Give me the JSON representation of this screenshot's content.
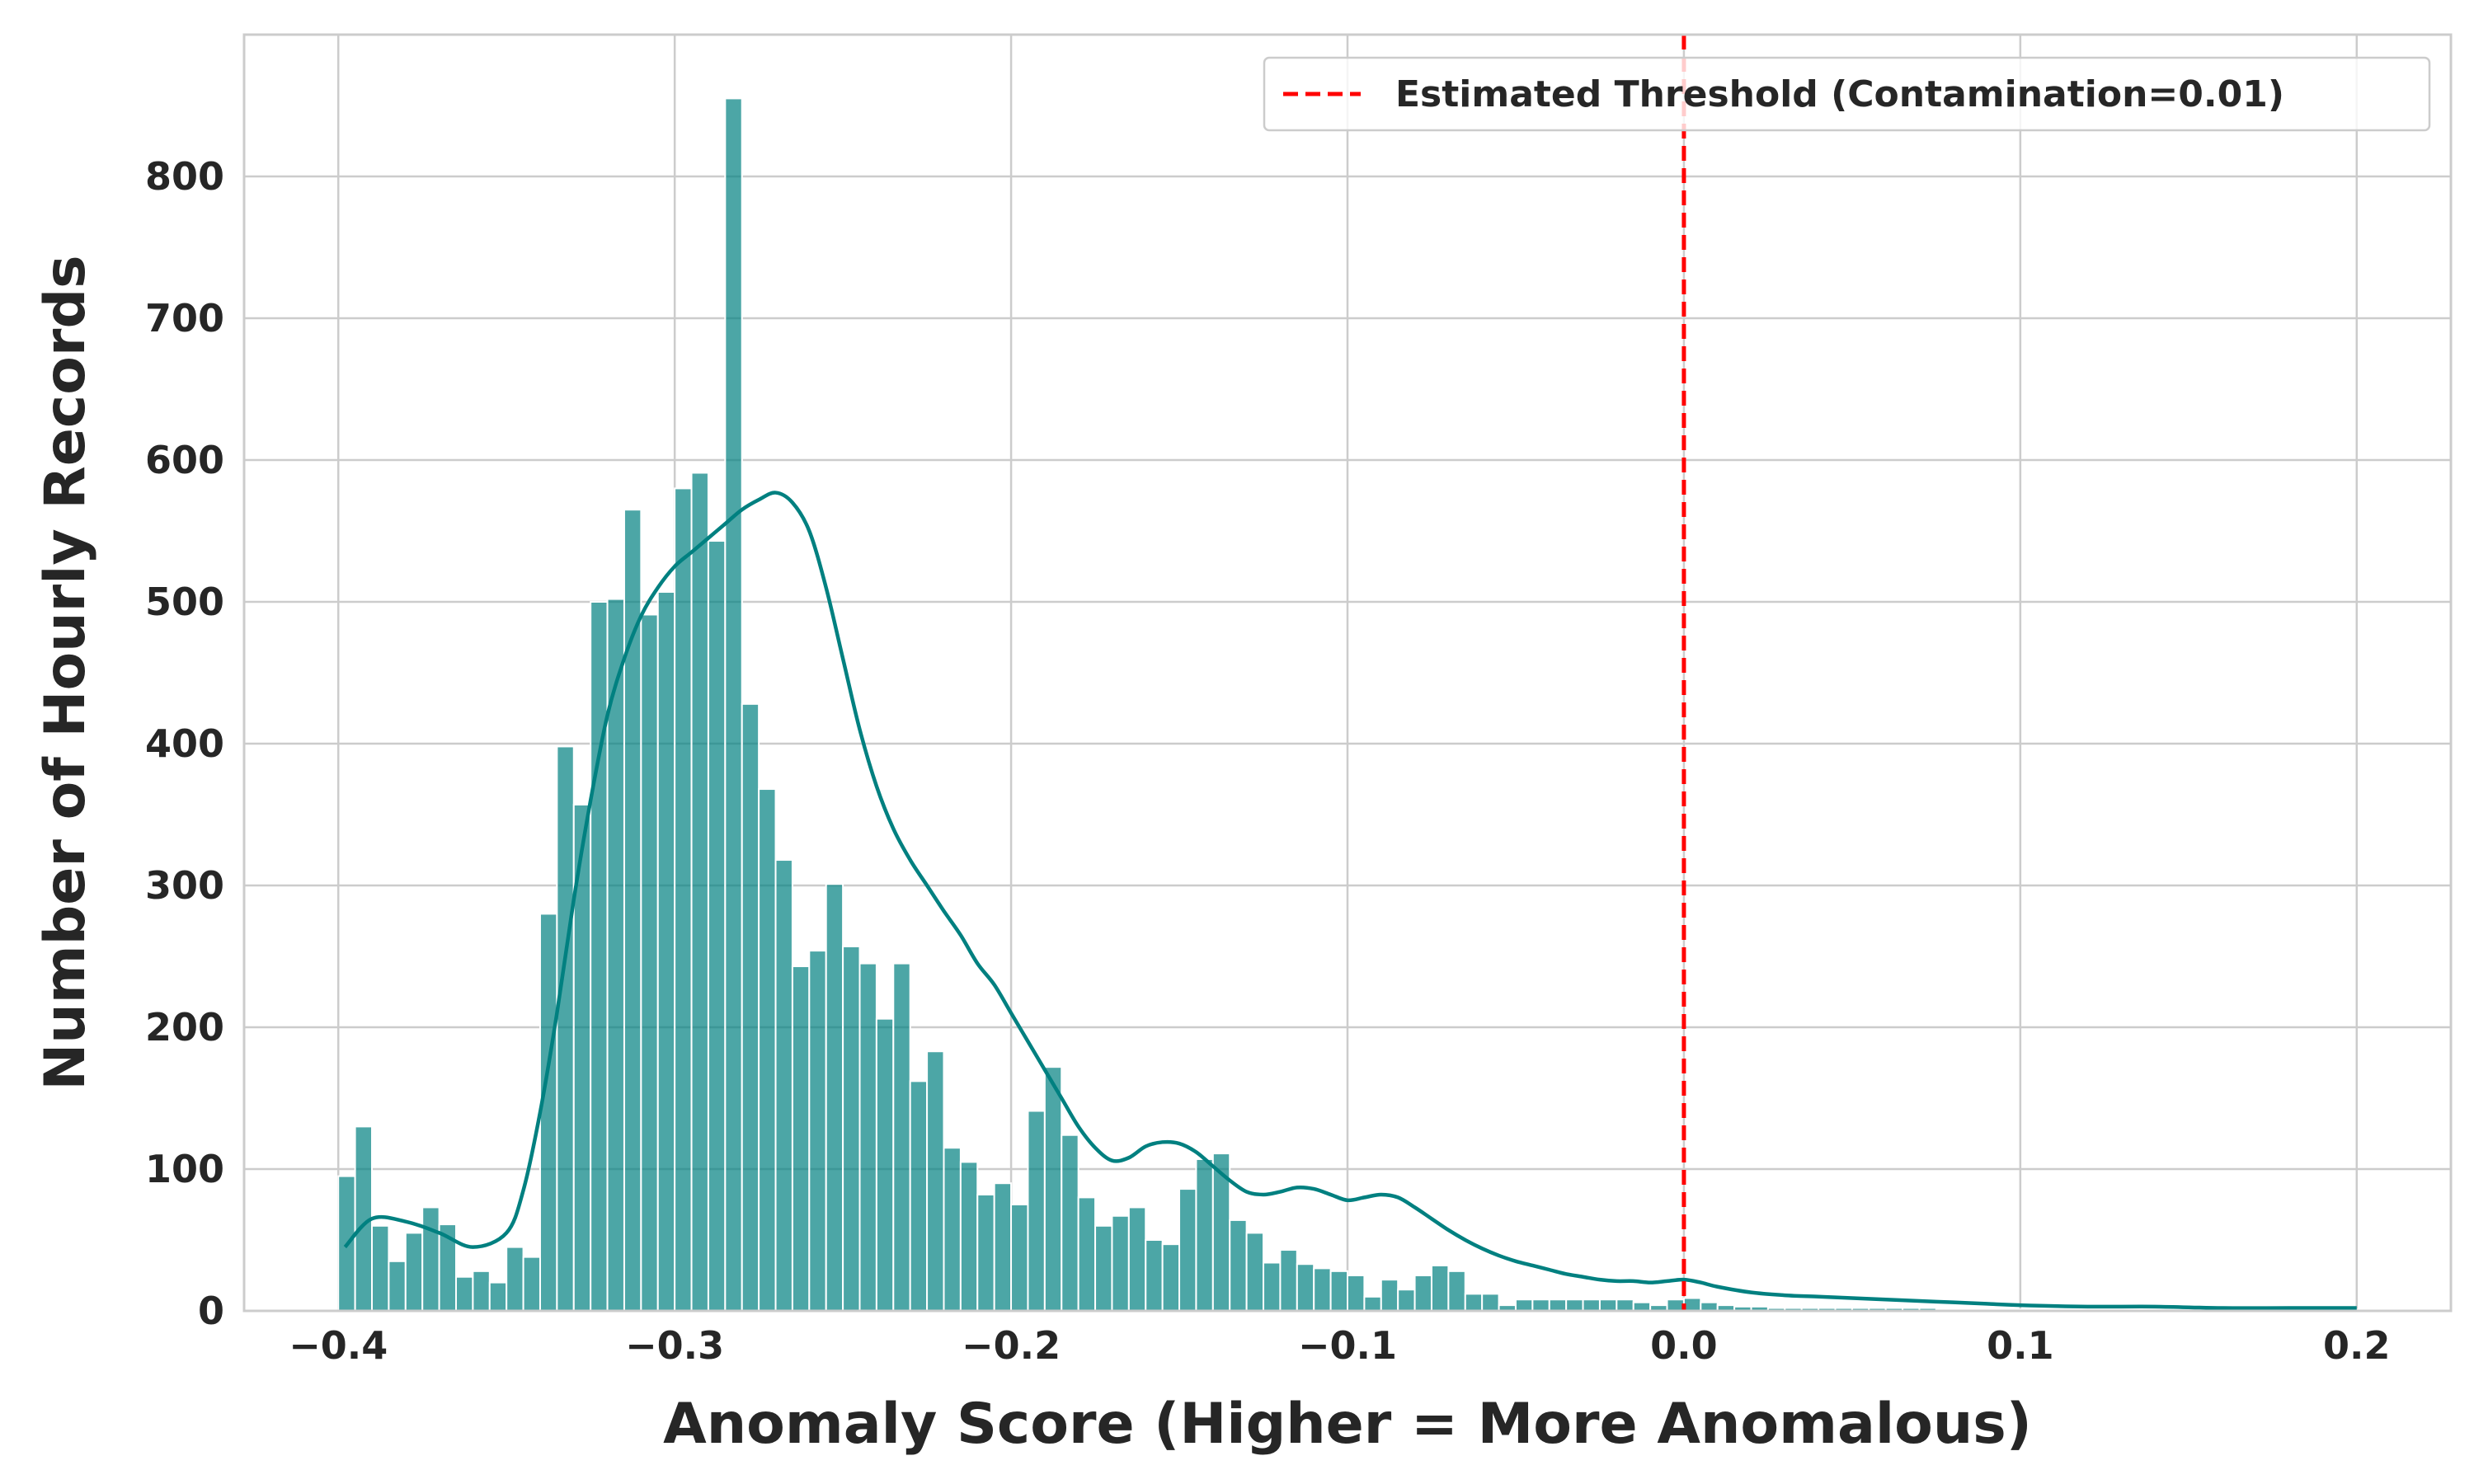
{
  "chart_data": {
    "type": "bar",
    "subtype": "histogram-with-kde",
    "title": "",
    "xlabel": "Anomaly Score (Higher = More Anomalous)",
    "ylabel": "Number of Hourly Records",
    "xlim": [
      -0.428,
      0.228
    ],
    "ylim": [
      0,
      900
    ],
    "xticks": [
      -0.4,
      -0.3,
      -0.2,
      -0.1,
      0.0,
      0.1,
      0.2
    ],
    "xtick_labels": [
      "−0.4",
      "−0.3",
      "−0.2",
      "−0.1",
      "0.0",
      "0.1",
      "0.2"
    ],
    "yticks": [
      0,
      100,
      200,
      300,
      400,
      500,
      600,
      700,
      800
    ],
    "ytick_labels": [
      "0",
      "100",
      "200",
      "300",
      "400",
      "500",
      "600",
      "700",
      "800"
    ],
    "grid": true,
    "legend_position": "top-right",
    "colors": {
      "bars": "#008080",
      "kde": "#008080",
      "threshold": "#ff0000",
      "grid": "#cccccc",
      "axes": "#cccccc"
    },
    "histogram": {
      "bin_start": -0.4,
      "bin_width": 0.005,
      "counts": [
        95,
        130,
        60,
        35,
        55,
        73,
        61,
        24,
        28,
        20,
        45,
        38,
        280,
        398,
        357,
        500,
        502,
        565,
        491,
        507,
        580,
        591,
        543,
        855,
        428,
        368,
        318,
        243,
        254,
        301,
        257,
        245,
        206,
        245,
        162,
        183,
        115,
        105,
        82,
        90,
        75,
        141,
        172,
        124,
        80,
        60,
        67,
        73,
        50,
        47,
        86,
        107,
        111,
        64,
        55,
        34,
        43,
        33,
        30,
        28,
        25,
        10,
        22,
        15,
        25,
        32,
        28,
        12,
        12,
        4,
        8,
        8,
        8,
        8,
        8,
        8,
        8,
        6,
        4,
        8,
        9,
        6,
        4,
        3,
        3,
        2,
        2,
        2,
        2,
        2,
        2,
        2,
        2,
        2,
        2,
        1,
        1,
        1,
        1,
        1,
        1,
        1,
        1,
        1,
        1,
        1,
        1,
        1,
        1,
        1,
        1,
        1,
        1,
        1,
        1,
        1,
        1,
        1,
        1,
        1
      ]
    },
    "kde": {
      "x": [
        -0.398,
        -0.39,
        -0.38,
        -0.37,
        -0.36,
        -0.35,
        -0.345,
        -0.34,
        -0.335,
        -0.33,
        -0.325,
        -0.32,
        -0.315,
        -0.31,
        -0.305,
        -0.3,
        -0.295,
        -0.29,
        -0.285,
        -0.28,
        -0.275,
        -0.27,
        -0.265,
        -0.26,
        -0.255,
        -0.25,
        -0.245,
        -0.24,
        -0.235,
        -0.23,
        -0.225,
        -0.22,
        -0.215,
        -0.21,
        -0.205,
        -0.2,
        -0.195,
        -0.19,
        -0.185,
        -0.18,
        -0.175,
        -0.17,
        -0.165,
        -0.16,
        -0.155,
        -0.15,
        -0.145,
        -0.14,
        -0.135,
        -0.13,
        -0.125,
        -0.12,
        -0.115,
        -0.11,
        -0.105,
        -0.1,
        -0.095,
        -0.09,
        -0.085,
        -0.08,
        -0.075,
        -0.07,
        -0.065,
        -0.06,
        -0.055,
        -0.05,
        -0.045,
        -0.04,
        -0.035,
        -0.03,
        -0.025,
        -0.02,
        -0.015,
        -0.01,
        -0.005,
        0.0,
        0.005,
        0.01,
        0.02,
        0.03,
        0.04,
        0.05,
        0.06,
        0.07,
        0.08,
        0.09,
        0.1,
        0.12,
        0.14,
        0.16,
        0.18,
        0.2
      ],
      "y": [
        45,
        65,
        63,
        55,
        45,
        55,
        85,
        140,
        210,
        290,
        360,
        420,
        460,
        490,
        510,
        525,
        535,
        545,
        555,
        565,
        572,
        577,
        570,
        550,
        510,
        460,
        410,
        370,
        340,
        318,
        300,
        282,
        265,
        245,
        230,
        210,
        190,
        170,
        150,
        130,
        115,
        106,
        108,
        116,
        119,
        118,
        112,
        102,
        92,
        84,
        82,
        84,
        87,
        86,
        82,
        78,
        80,
        82,
        80,
        73,
        65,
        57,
        50,
        44,
        39,
        35,
        32,
        29,
        26,
        24,
        22,
        21,
        21,
        20,
        21,
        22,
        20,
        17,
        13,
        11,
        10,
        9,
        8,
        7,
        6,
        5,
        4,
        3,
        3,
        2,
        2,
        2
      ]
    },
    "threshold": {
      "x": 0.0,
      "label": "Estimated Threshold (Contamination=0.01)"
    }
  }
}
